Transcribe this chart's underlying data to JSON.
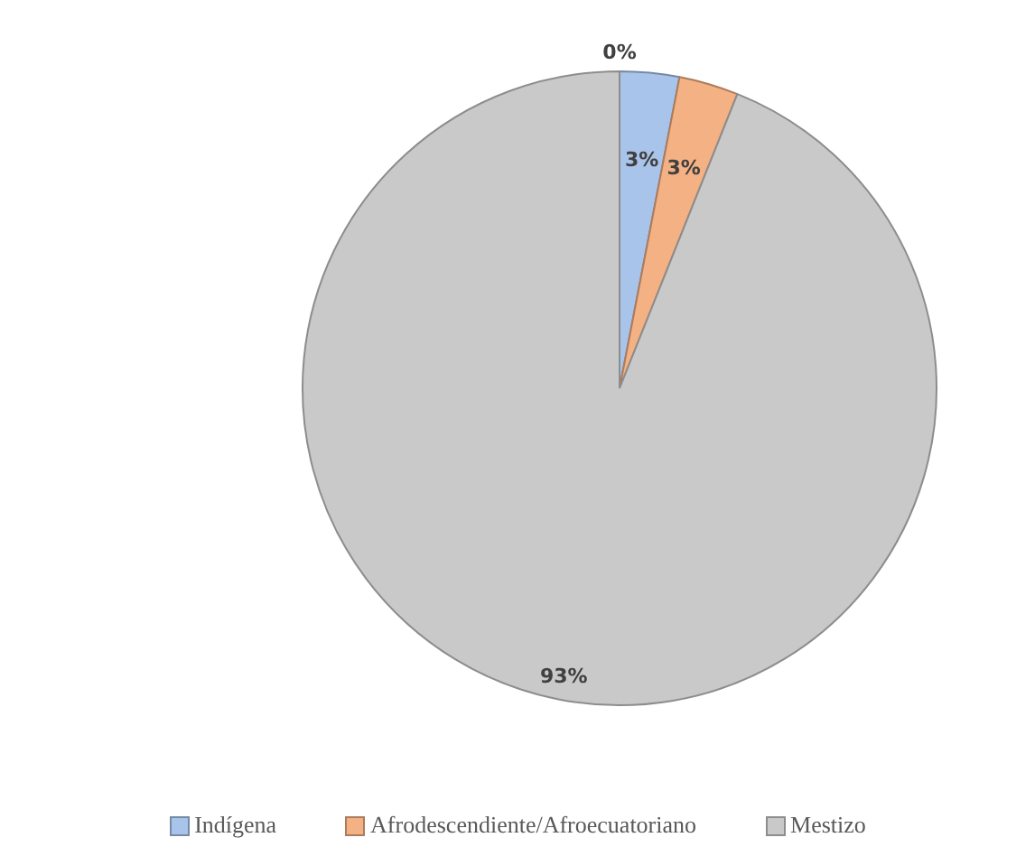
{
  "chart_data": {
    "type": "pie",
    "categories": [
      "Indígena",
      "Afrodescendiente/Afroecuatoriano",
      "Mestizo",
      null
    ],
    "values": [
      3,
      3,
      93,
      0
    ],
    "value_labels": [
      "3%",
      "3%",
      "93%",
      "0%"
    ],
    "colors": [
      "#a9c4eb",
      "#f4b183",
      "#c9c9c9",
      "#ffc000"
    ],
    "legend": "bottom"
  }
}
